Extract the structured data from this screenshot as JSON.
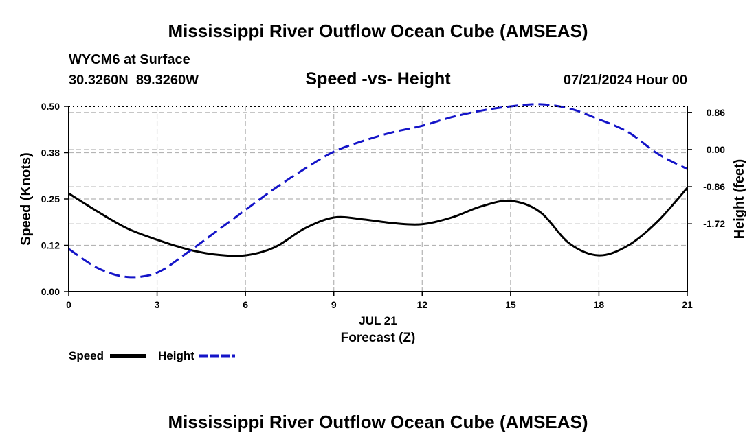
{
  "page_title": "Mississippi River Outflow Ocean Cube (AMSEAS)",
  "station": {
    "name": "WYCM6 at Surface",
    "coords": "30.3260N  89.3260W"
  },
  "forecast_time": "07/21/2024 Hour 00",
  "chart_data": {
    "type": "line",
    "title": "Speed -vs- Height",
    "xlabel": "Forecast (Z)",
    "xdate_label": "JUL 21",
    "xlim": [
      0,
      21
    ],
    "x_ticks": [
      0,
      3,
      6,
      9,
      12,
      15,
      18,
      21
    ],
    "y_left": {
      "label": "Speed (Knots)",
      "lim": [
        0,
        0.5
      ],
      "ticks": [
        0.0,
        0.125,
        0.25,
        0.375,
        0.5
      ],
      "tick_labels": [
        "0.00",
        "0.12",
        "0.25",
        "0.38",
        "0.50"
      ]
    },
    "y_right": {
      "label": "Height (feet)",
      "lim": [
        -3.29,
        1.0
      ],
      "ticks": [
        0.86,
        0.0,
        -0.86,
        -1.72
      ],
      "tick_labels": [
        "0.86",
        "0.00",
        "-0.86",
        "-1.72"
      ]
    },
    "grid": true,
    "series": [
      {
        "name": "Speed",
        "axis": "left",
        "color": "#000000",
        "dash": "solid",
        "x": [
          0,
          1,
          2,
          3,
          4,
          5,
          6,
          7,
          8,
          9,
          10,
          11,
          12,
          13,
          14,
          15,
          16,
          17,
          18,
          19,
          20,
          21
        ],
        "values": [
          0.265,
          0.215,
          0.17,
          0.14,
          0.115,
          0.1,
          0.098,
          0.12,
          0.17,
          0.2,
          0.195,
          0.185,
          0.182,
          0.2,
          0.23,
          0.245,
          0.215,
          0.13,
          0.098,
          0.125,
          0.19,
          0.28
        ]
      },
      {
        "name": "Height",
        "axis": "right",
        "color": "#1414c8",
        "dash": "dashed",
        "x": [
          0,
          1,
          2,
          3,
          4,
          5,
          6,
          7,
          8,
          9,
          10,
          11,
          12,
          13,
          14,
          15,
          16,
          17,
          18,
          19,
          20,
          21
        ],
        "values": [
          -2.3,
          -2.75,
          -2.95,
          -2.85,
          -2.4,
          -1.9,
          -1.4,
          -0.9,
          -0.45,
          -0.05,
          0.2,
          0.4,
          0.55,
          0.75,
          0.9,
          1.0,
          1.05,
          0.95,
          0.7,
          0.4,
          -0.1,
          -0.45
        ]
      }
    ]
  },
  "legend": {
    "speed_label": "Speed",
    "height_label": "Height"
  },
  "footer_title": "Mississippi River Outflow Ocean Cube (AMSEAS)"
}
